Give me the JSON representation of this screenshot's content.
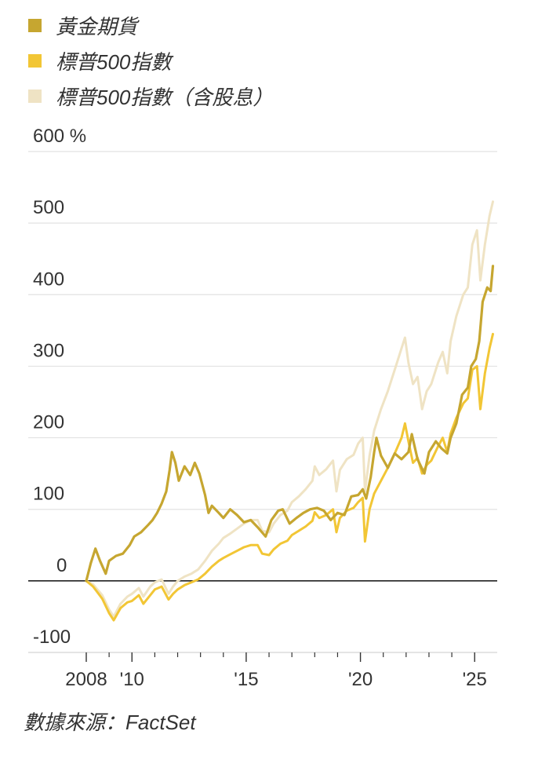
{
  "chart_data": {
    "type": "line",
    "legend_position": "top-left",
    "ylabel_unit": "%",
    "ylim": [
      -100,
      600
    ],
    "xlim": [
      2008,
      2025.85
    ],
    "y_ticks": [
      {
        "value": 600,
        "label": "600 %"
      },
      {
        "value": 500,
        "label": "500"
      },
      {
        "value": 400,
        "label": "400"
      },
      {
        "value": 300,
        "label": "300"
      },
      {
        "value": 200,
        "label": "200"
      },
      {
        "value": 100,
        "label": "100"
      },
      {
        "value": 0,
        "label": "0"
      },
      {
        "value": -100,
        "label": "-100"
      }
    ],
    "x_ticks": [
      {
        "value": 2008,
        "label": "2008"
      },
      {
        "value": 2010,
        "label": "'10"
      },
      {
        "value": 2015,
        "label": "'15"
      },
      {
        "value": 2020,
        "label": "'20"
      },
      {
        "value": 2025,
        "label": "'25"
      }
    ],
    "x_minor_ticks": [
      2009,
      2011,
      2012,
      2013,
      2014,
      2016,
      2017,
      2018,
      2019,
      2021,
      2022,
      2023,
      2024
    ],
    "series": [
      {
        "name": "標普500指數（含股息）",
        "color": "#efe3c4",
        "points": [
          [
            2008.0,
            0
          ],
          [
            2008.3,
            -5
          ],
          [
            2008.7,
            -20
          ],
          [
            2009.0,
            -40
          ],
          [
            2009.2,
            -50
          ],
          [
            2009.5,
            -32
          ],
          [
            2009.8,
            -22
          ],
          [
            2010.0,
            -18
          ],
          [
            2010.3,
            -10
          ],
          [
            2010.5,
            -22
          ],
          [
            2010.8,
            -8
          ],
          [
            2011.0,
            -2
          ],
          [
            2011.3,
            2
          ],
          [
            2011.6,
            -18
          ],
          [
            2011.8,
            -8
          ],
          [
            2012.0,
            0
          ],
          [
            2012.3,
            6
          ],
          [
            2012.6,
            10
          ],
          [
            2012.9,
            16
          ],
          [
            2013.2,
            28
          ],
          [
            2013.5,
            42
          ],
          [
            2013.8,
            52
          ],
          [
            2014.0,
            60
          ],
          [
            2014.3,
            66
          ],
          [
            2014.6,
            73
          ],
          [
            2014.9,
            80
          ],
          [
            2015.2,
            85
          ],
          [
            2015.5,
            85
          ],
          [
            2015.7,
            70
          ],
          [
            2016.0,
            68
          ],
          [
            2016.2,
            80
          ],
          [
            2016.5,
            92
          ],
          [
            2016.8,
            98
          ],
          [
            2017.0,
            110
          ],
          [
            2017.3,
            118
          ],
          [
            2017.6,
            128
          ],
          [
            2017.9,
            140
          ],
          [
            2018.0,
            160
          ],
          [
            2018.2,
            148
          ],
          [
            2018.5,
            156
          ],
          [
            2018.8,
            168
          ],
          [
            2018.95,
            125
          ],
          [
            2019.1,
            155
          ],
          [
            2019.4,
            170
          ],
          [
            2019.7,
            176
          ],
          [
            2019.9,
            192
          ],
          [
            2020.1,
            200
          ],
          [
            2020.2,
            125
          ],
          [
            2020.4,
            175
          ],
          [
            2020.6,
            210
          ],
          [
            2020.9,
            240
          ],
          [
            2021.2,
            265
          ],
          [
            2021.5,
            295
          ],
          [
            2021.8,
            325
          ],
          [
            2021.95,
            340
          ],
          [
            2022.1,
            305
          ],
          [
            2022.3,
            275
          ],
          [
            2022.5,
            285
          ],
          [
            2022.7,
            240
          ],
          [
            2022.9,
            265
          ],
          [
            2023.1,
            275
          ],
          [
            2023.4,
            305
          ],
          [
            2023.6,
            320
          ],
          [
            2023.8,
            290
          ],
          [
            2023.95,
            335
          ],
          [
            2024.2,
            370
          ],
          [
            2024.5,
            400
          ],
          [
            2024.7,
            410
          ],
          [
            2024.9,
            470
          ],
          [
            2025.1,
            490
          ],
          [
            2025.25,
            420
          ],
          [
            2025.45,
            470
          ],
          [
            2025.65,
            510
          ],
          [
            2025.8,
            530
          ]
        ]
      },
      {
        "name": "標普500指數",
        "color": "#f2c635",
        "points": [
          [
            2008.0,
            0
          ],
          [
            2008.3,
            -8
          ],
          [
            2008.7,
            -25
          ],
          [
            2009.0,
            -45
          ],
          [
            2009.2,
            -55
          ],
          [
            2009.5,
            -38
          ],
          [
            2009.8,
            -30
          ],
          [
            2010.0,
            -28
          ],
          [
            2010.3,
            -20
          ],
          [
            2010.5,
            -32
          ],
          [
            2010.8,
            -20
          ],
          [
            2011.0,
            -12
          ],
          [
            2011.3,
            -8
          ],
          [
            2011.6,
            -26
          ],
          [
            2011.8,
            -18
          ],
          [
            2012.0,
            -12
          ],
          [
            2012.3,
            -6
          ],
          [
            2012.6,
            -2
          ],
          [
            2012.9,
            2
          ],
          [
            2013.2,
            10
          ],
          [
            2013.5,
            20
          ],
          [
            2013.8,
            28
          ],
          [
            2014.0,
            32
          ],
          [
            2014.3,
            37
          ],
          [
            2014.6,
            42
          ],
          [
            2014.9,
            47
          ],
          [
            2015.2,
            50
          ],
          [
            2015.5,
            50
          ],
          [
            2015.7,
            38
          ],
          [
            2016.0,
            36
          ],
          [
            2016.2,
            44
          ],
          [
            2016.5,
            52
          ],
          [
            2016.8,
            56
          ],
          [
            2017.0,
            64
          ],
          [
            2017.3,
            70
          ],
          [
            2017.6,
            76
          ],
          [
            2017.9,
            84
          ],
          [
            2018.0,
            96
          ],
          [
            2018.2,
            88
          ],
          [
            2018.5,
            92
          ],
          [
            2018.8,
            100
          ],
          [
            2018.95,
            68
          ],
          [
            2019.1,
            88
          ],
          [
            2019.4,
            98
          ],
          [
            2019.7,
            102
          ],
          [
            2019.9,
            110
          ],
          [
            2020.1,
            116
          ],
          [
            2020.2,
            55
          ],
          [
            2020.4,
            100
          ],
          [
            2020.6,
            122
          ],
          [
            2020.9,
            140
          ],
          [
            2021.2,
            158
          ],
          [
            2021.5,
            178
          ],
          [
            2021.8,
            200
          ],
          [
            2021.95,
            220
          ],
          [
            2022.1,
            195
          ],
          [
            2022.3,
            165
          ],
          [
            2022.5,
            172
          ],
          [
            2022.7,
            150
          ],
          [
            2022.9,
            162
          ],
          [
            2023.1,
            168
          ],
          [
            2023.4,
            188
          ],
          [
            2023.6,
            200
          ],
          [
            2023.8,
            180
          ],
          [
            2023.95,
            206
          ],
          [
            2024.2,
            228
          ],
          [
            2024.5,
            248
          ],
          [
            2024.7,
            255
          ],
          [
            2024.9,
            295
          ],
          [
            2025.1,
            300
          ],
          [
            2025.25,
            240
          ],
          [
            2025.45,
            290
          ],
          [
            2025.65,
            325
          ],
          [
            2025.8,
            345
          ]
        ]
      },
      {
        "name": "黃金期貨",
        "color": "#c6a630",
        "points": [
          [
            2008.0,
            0
          ],
          [
            2008.2,
            25
          ],
          [
            2008.4,
            45
          ],
          [
            2008.6,
            28
          ],
          [
            2008.85,
            10
          ],
          [
            2009.0,
            28
          ],
          [
            2009.3,
            35
          ],
          [
            2009.6,
            38
          ],
          [
            2009.9,
            50
          ],
          [
            2010.1,
            62
          ],
          [
            2010.4,
            68
          ],
          [
            2010.7,
            78
          ],
          [
            2010.9,
            85
          ],
          [
            2011.1,
            95
          ],
          [
            2011.3,
            108
          ],
          [
            2011.5,
            125
          ],
          [
            2011.65,
            155
          ],
          [
            2011.75,
            180
          ],
          [
            2011.9,
            165
          ],
          [
            2012.05,
            140
          ],
          [
            2012.3,
            160
          ],
          [
            2012.55,
            148
          ],
          [
            2012.75,
            165
          ],
          [
            2012.95,
            150
          ],
          [
            2013.2,
            120
          ],
          [
            2013.35,
            95
          ],
          [
            2013.5,
            105
          ],
          [
            2013.8,
            95
          ],
          [
            2014.0,
            88
          ],
          [
            2014.3,
            100
          ],
          [
            2014.6,
            92
          ],
          [
            2014.9,
            82
          ],
          [
            2015.2,
            85
          ],
          [
            2015.5,
            75
          ],
          [
            2015.85,
            62
          ],
          [
            2016.1,
            85
          ],
          [
            2016.4,
            98
          ],
          [
            2016.6,
            100
          ],
          [
            2016.9,
            80
          ],
          [
            2017.2,
            88
          ],
          [
            2017.5,
            95
          ],
          [
            2017.8,
            100
          ],
          [
            2018.1,
            102
          ],
          [
            2018.4,
            98
          ],
          [
            2018.7,
            85
          ],
          [
            2019.0,
            95
          ],
          [
            2019.3,
            92
          ],
          [
            2019.6,
            118
          ],
          [
            2019.9,
            120
          ],
          [
            2020.1,
            128
          ],
          [
            2020.25,
            115
          ],
          [
            2020.45,
            145
          ],
          [
            2020.6,
            180
          ],
          [
            2020.7,
            200
          ],
          [
            2020.9,
            175
          ],
          [
            2021.2,
            158
          ],
          [
            2021.5,
            178
          ],
          [
            2021.8,
            170
          ],
          [
            2022.1,
            180
          ],
          [
            2022.25,
            205
          ],
          [
            2022.5,
            170
          ],
          [
            2022.8,
            150
          ],
          [
            2023.0,
            180
          ],
          [
            2023.3,
            195
          ],
          [
            2023.55,
            185
          ],
          [
            2023.8,
            178
          ],
          [
            2023.95,
            200
          ],
          [
            2024.2,
            220
          ],
          [
            2024.45,
            260
          ],
          [
            2024.7,
            270
          ],
          [
            2024.85,
            300
          ],
          [
            2025.05,
            310
          ],
          [
            2025.2,
            335
          ],
          [
            2025.35,
            390
          ],
          [
            2025.55,
            410
          ],
          [
            2025.7,
            405
          ],
          [
            2025.8,
            440
          ]
        ]
      }
    ]
  },
  "legend": {
    "items": [
      {
        "label": "黃金期貨",
        "color": "#c6a630"
      },
      {
        "label": "標普500指數",
        "color": "#f2c635"
      },
      {
        "label": "標普500指數（含股息）",
        "color": "#efe3c4"
      }
    ]
  },
  "source": "數據來源：FactSet"
}
